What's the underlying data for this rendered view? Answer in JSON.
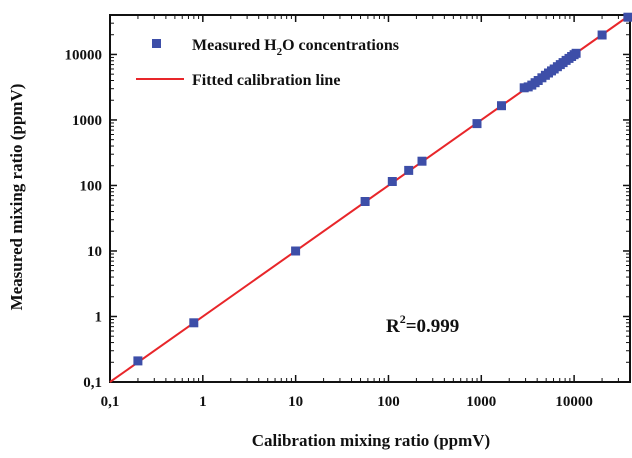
{
  "chart_data": {
    "type": "scatter",
    "xlabel": "Calibration mixing ratio (ppmV)",
    "ylabel": "Measured mixing ratio (ppmV)",
    "xscale": "log",
    "yscale": "log",
    "xlim": [
      0.1,
      40000
    ],
    "ylim": [
      0.1,
      40000
    ],
    "xticks": [
      "0,1",
      "1",
      "10",
      "100",
      "1000",
      "10000"
    ],
    "yticks": [
      "0,1",
      "1",
      "10",
      "100",
      "1000",
      "10000"
    ],
    "legend_position": "top-left",
    "annotation": {
      "prefix": "R",
      "superscript": "2",
      "text": "=0.999"
    },
    "colors": {
      "points": "#3d4ea8",
      "line": "#e8262a",
      "axes": "#111111"
    },
    "series": [
      {
        "name_parts": [
          "Measured H",
          "2",
          "O concentrations"
        ],
        "kind": "scatter",
        "marker": "square",
        "x": [
          0.2,
          0.8,
          10,
          56,
          110,
          165,
          230,
          900,
          1650,
          2900,
          3200,
          3500,
          3800,
          4100,
          4500,
          4900,
          5300,
          5700,
          6100,
          6600,
          7100,
          7600,
          8200,
          8800,
          9400,
          10000,
          10500,
          20000,
          38000
        ],
        "y": [
          0.21,
          0.8,
          10,
          57,
          115,
          170,
          235,
          880,
          1650,
          3100,
          3200,
          3400,
          3700,
          4000,
          4400,
          4800,
          5200,
          5600,
          6000,
          6500,
          7000,
          7500,
          8100,
          8700,
          9300,
          9900,
          10400,
          19800,
          37000
        ]
      },
      {
        "name": "Fitted calibration line",
        "kind": "line",
        "x": [
          0.1,
          40000
        ],
        "y": [
          0.1,
          40000
        ]
      }
    ]
  }
}
